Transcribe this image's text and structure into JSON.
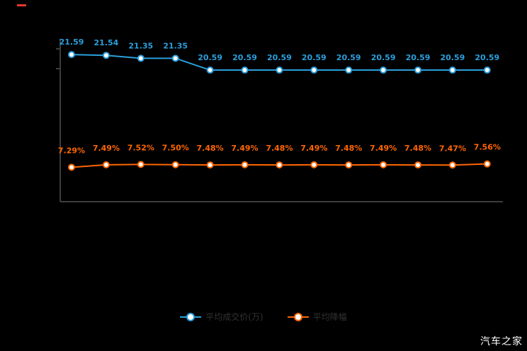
{
  "watermark": "汽车之家",
  "legend": [
    {
      "label": "平均成交价(万)",
      "color": "#2b9fdd"
    },
    {
      "label": "平均降幅",
      "color": "#ff6600"
    }
  ],
  "colors": {
    "background": "#000000",
    "axis": "#3d3d3d",
    "blue_series": "#2b9fdd",
    "orange_series": "#ff6600",
    "legend_text": "#333333",
    "watermark_text": "#ffffff",
    "red_mark": "#e8382d"
  },
  "chart_data": {
    "type": "line",
    "title": "",
    "xlabel": "",
    "ylabel": "",
    "x_tick_labels": [],
    "grid": false,
    "legend_position": "bottom",
    "point_count": 13,
    "series": [
      {
        "name": "平均成交价(万)",
        "color": "#2b9fdd",
        "suffix": "",
        "ylim": [
          12.1,
          22.6
        ],
        "values": [
          21.59,
          21.54,
          21.35,
          21.35,
          20.59,
          20.59,
          20.59,
          20.59,
          20.59,
          20.59,
          20.59,
          20.59,
          20.59
        ]
      },
      {
        "name": "平均降幅",
        "color": "#ff6600",
        "suffix": "%",
        "ylim": [
          4.5,
          17.7
        ],
        "values": [
          7.29,
          7.49,
          7.52,
          7.5,
          7.48,
          7.49,
          7.48,
          7.49,
          7.48,
          7.49,
          7.48,
          7.47,
          7.56
        ]
      }
    ]
  }
}
